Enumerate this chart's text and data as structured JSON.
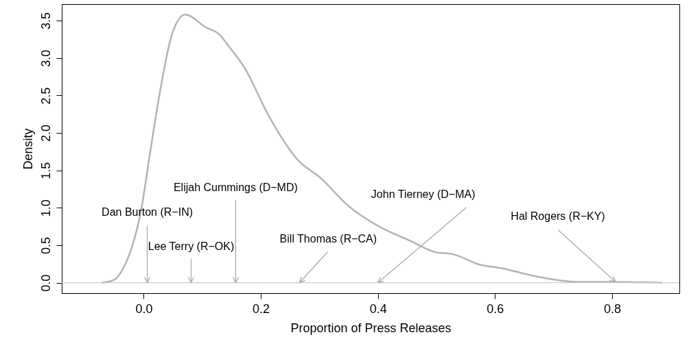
{
  "chart_data": {
    "type": "line",
    "xlabel": "Proportion of Press Releases",
    "ylabel": "Density",
    "x": [
      -0.072,
      -0.05,
      -0.038,
      -0.02,
      -0.011,
      -0.003,
      0.009,
      0.028,
      0.048,
      0.071,
      0.106,
      0.13,
      0.145,
      0.173,
      0.212,
      0.263,
      0.302,
      0.349,
      0.4,
      0.458,
      0.497,
      0.528,
      0.575,
      0.614,
      0.661,
      0.712,
      0.751,
      0.8,
      0.886
    ],
    "series": [
      {
        "color": "#b3b3b3",
        "values": [
          0.0,
          0.04,
          0.15,
          0.48,
          0.73,
          1.03,
          1.64,
          2.56,
          3.31,
          3.58,
          3.41,
          3.31,
          3.16,
          2.86,
          2.25,
          1.64,
          1.4,
          1.03,
          0.76,
          0.55,
          0.41,
          0.38,
          0.24,
          0.19,
          0.1,
          0.03,
          0.01,
          0.01,
          0.0
        ]
      }
    ],
    "xlim": [
      -0.14,
      0.915
    ],
    "ylim": [
      -0.14,
      3.72
    ],
    "xticks": [
      {
        "value": 0,
        "label": "0.0"
      },
      {
        "value": 0.2,
        "label": "0.2"
      },
      {
        "value": 0.4,
        "label": "0.4"
      },
      {
        "value": 0.6,
        "label": "0.6"
      },
      {
        "value": 0.8,
        "label": "0.8"
      }
    ],
    "yticks": [
      {
        "value": 0,
        "label": "0.0"
      },
      {
        "value": 0.5,
        "label": "0.5"
      },
      {
        "value": 1,
        "label": "1.0"
      },
      {
        "value": 1.5,
        "label": "1.5"
      },
      {
        "value": 2,
        "label": "2.0"
      },
      {
        "value": 2.5,
        "label": "2.5"
      },
      {
        "value": 3,
        "label": "3.0"
      },
      {
        "value": 3.5,
        "label": "3.5"
      }
    ],
    "ref_lines": [
      {
        "axis": "y",
        "value": 0,
        "color": "#cccccc"
      }
    ],
    "annotations": [
      {
        "text": "Dan Burton (R−IN)",
        "x": 0.006,
        "y": 0
      },
      {
        "text": "Lee Terry (R−OK)",
        "x": 0.081,
        "y": 0
      },
      {
        "text": "Elijah Cummings (D−MD)",
        "x": 0.157,
        "y": 0
      },
      {
        "text": "Bill Thomas (R−CA)",
        "x": 0.266,
        "y": 0
      },
      {
        "text": "John Tierney (D−MA)",
        "x": 0.4,
        "y": 0
      },
      {
        "text": "Hal Rogers (R−KY)",
        "x": 0.806,
        "y": 0.01
      }
    ],
    "grid": false,
    "marker": "none",
    "line_style": "solid"
  }
}
